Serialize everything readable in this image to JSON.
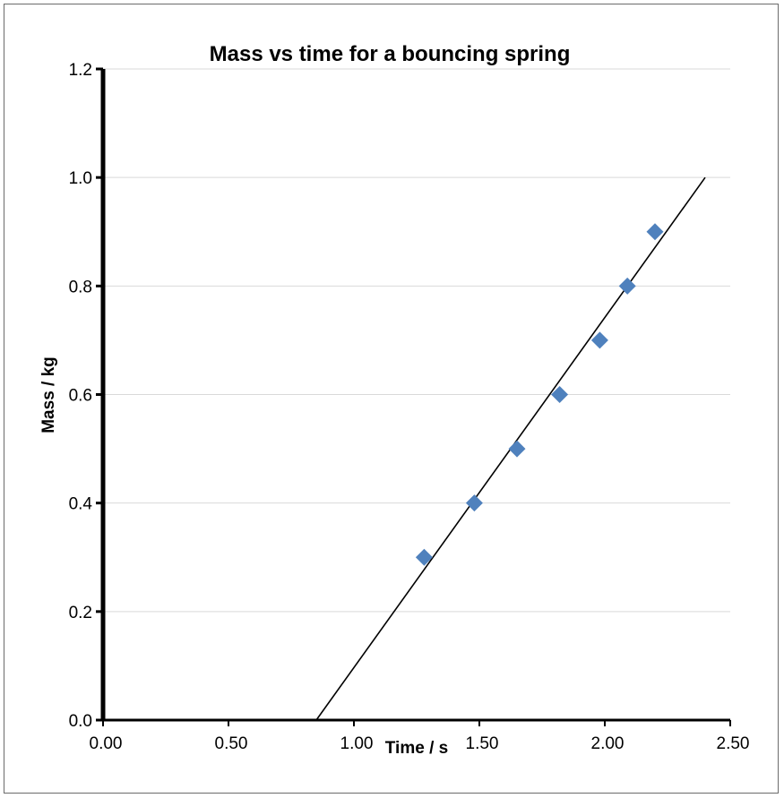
{
  "chart_data": {
    "type": "scatter",
    "title": "Mass vs time for a bouncing spring",
    "xlabel": "Time / s",
    "ylabel": "Mass / kg",
    "xlim": [
      0,
      2.5
    ],
    "ylim": [
      0,
      1.2
    ],
    "x_ticks": [
      "0.00",
      "0.50",
      "1.00",
      "1.50",
      "2.00",
      "2.50"
    ],
    "y_ticks": [
      "0.0",
      "0.2",
      "0.4",
      "0.6",
      "0.8",
      "1.0",
      "1.2"
    ],
    "grid": "horizontal",
    "legend": "none",
    "series": [
      {
        "points": [
          {
            "x": 1.28,
            "y": 0.3
          },
          {
            "x": 1.48,
            "y": 0.4
          },
          {
            "x": 1.65,
            "y": 0.5
          },
          {
            "x": 1.82,
            "y": 0.6
          },
          {
            "x": 1.98,
            "y": 0.7
          },
          {
            "x": 2.09,
            "y": 0.8
          },
          {
            "x": 2.2,
            "y": 0.9
          }
        ],
        "color": "#4f81bd",
        "marker": "diamond"
      }
    ],
    "trendline": {
      "x": [
        0.85,
        2.4
      ],
      "y": [
        0.0,
        1.0
      ],
      "color": "#000000"
    }
  }
}
